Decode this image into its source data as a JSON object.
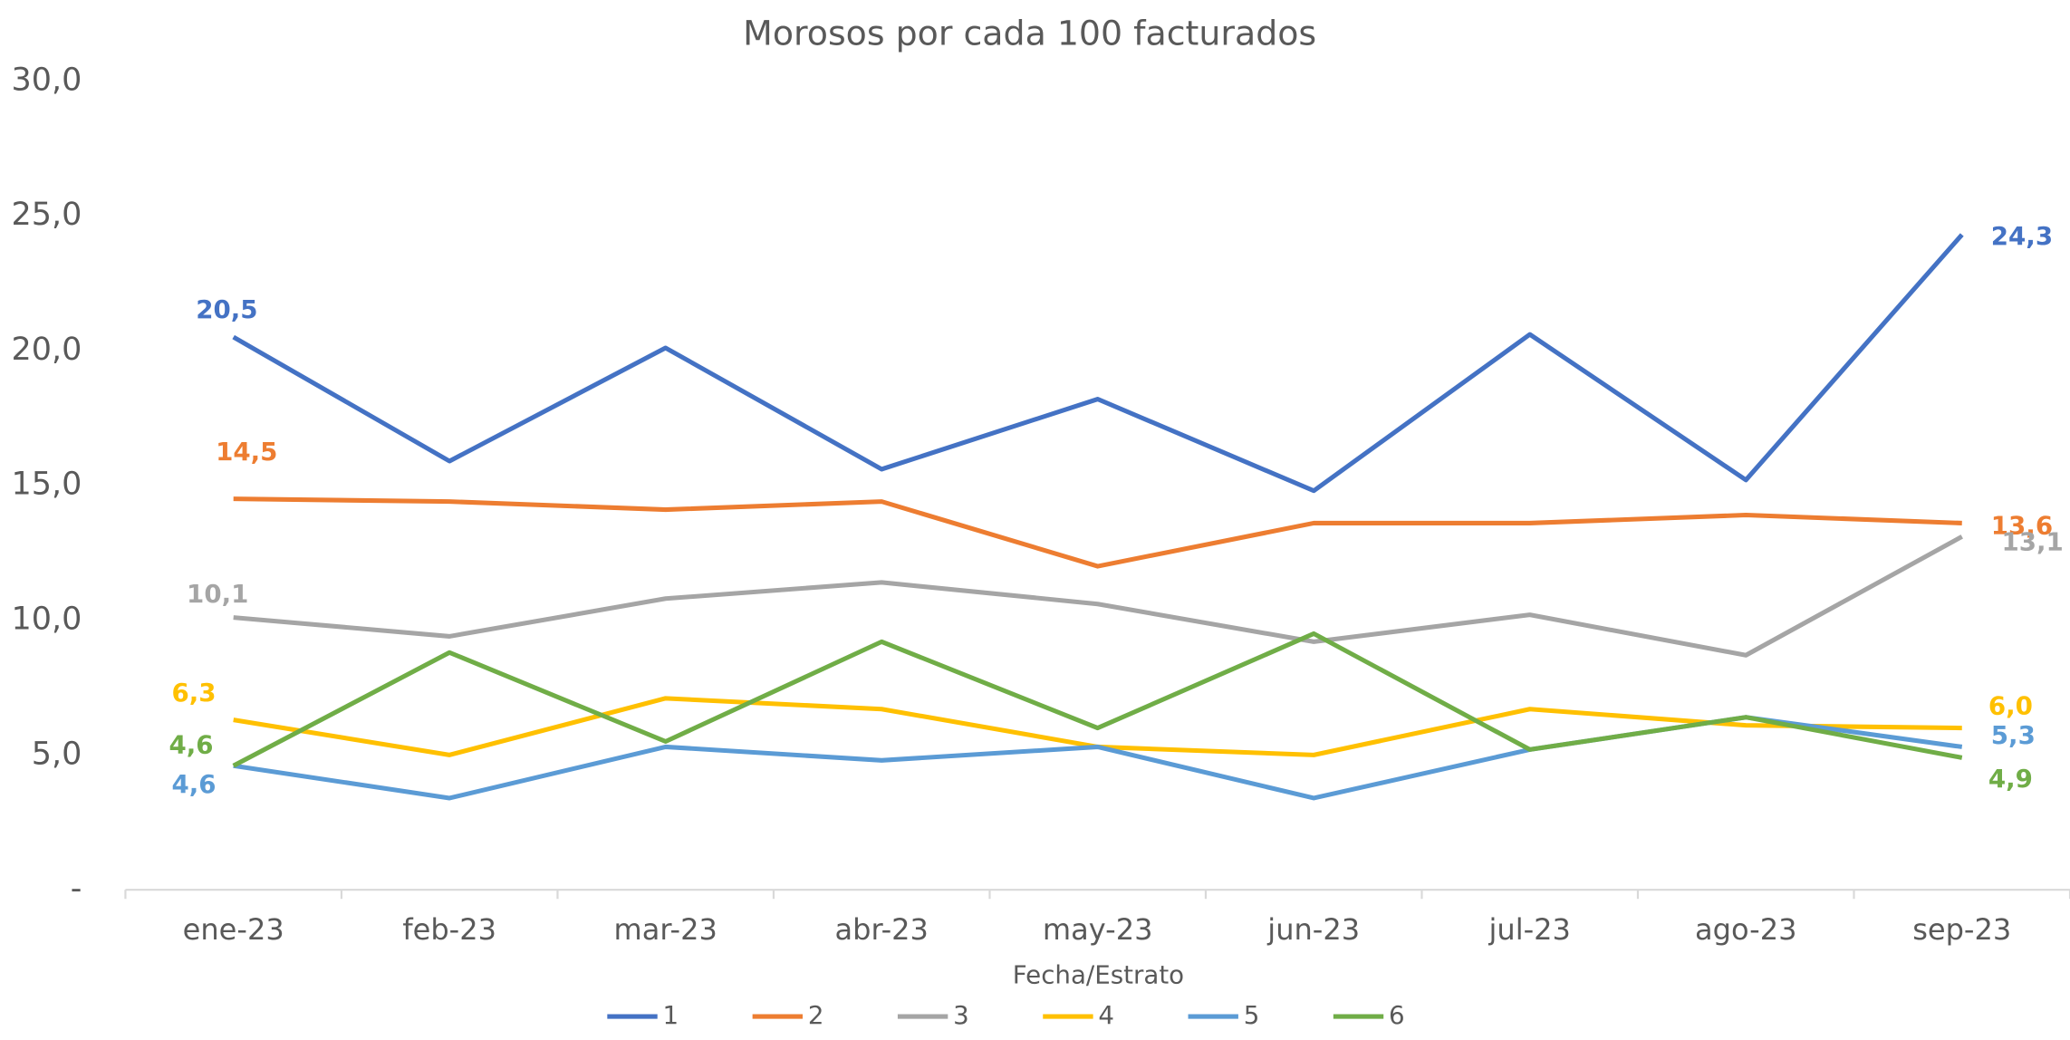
{
  "chart_data": {
    "type": "line",
    "title": "Morosos por cada 100 facturados",
    "x_label": "Fecha/Estrato",
    "categories": [
      "ene-23",
      "feb-23",
      "mar-23",
      "abr-23",
      "may-23",
      "jun-23",
      "jul-23",
      "ago-23",
      "sep-23"
    ],
    "ylim": [
      0,
      30
    ],
    "yticks": [
      {
        "value": 0,
        "label": "-"
      },
      {
        "value": 5,
        "label": "5,0"
      },
      {
        "value": 10,
        "label": "10,0"
      },
      {
        "value": 15,
        "label": "15,0"
      },
      {
        "value": 20,
        "label": "20,0"
      },
      {
        "value": 25,
        "label": "25,0"
      },
      {
        "value": 30,
        "label": "30,0"
      }
    ],
    "grid": false,
    "legend": "bottom",
    "series": [
      {
        "name": "1",
        "color": "#4472c4",
        "values": [
          20.5,
          15.9,
          20.1,
          15.6,
          18.2,
          14.8,
          20.6,
          15.2,
          24.3
        ],
        "value_labels": [
          "20,5",
          null,
          null,
          null,
          null,
          null,
          null,
          null,
          "24,3"
        ]
      },
      {
        "name": "2",
        "color": "#ed7d31",
        "values": [
          14.5,
          14.4,
          14.1,
          14.4,
          12.0,
          13.6,
          13.6,
          13.9,
          13.6
        ],
        "value_labels": [
          "14,5",
          null,
          null,
          null,
          null,
          null,
          null,
          null,
          "13,6"
        ]
      },
      {
        "name": "3",
        "color": "#a5a5a5",
        "values": [
          10.1,
          9.4,
          10.8,
          11.4,
          10.6,
          9.2,
          10.2,
          8.7,
          13.1
        ],
        "value_labels": [
          "10,1",
          null,
          null,
          null,
          null,
          null,
          null,
          null,
          "13,1"
        ]
      },
      {
        "name": "4",
        "color": "#ffc000",
        "values": [
          6.3,
          5.0,
          7.1,
          6.7,
          5.3,
          5.0,
          6.7,
          6.1,
          6.0
        ],
        "value_labels": [
          "6,3",
          null,
          null,
          null,
          null,
          null,
          null,
          null,
          "6,0"
        ]
      },
      {
        "name": "5",
        "color": "#5b9bd5",
        "values": [
          4.6,
          3.4,
          5.3,
          4.8,
          5.3,
          3.4,
          5.2,
          6.4,
          5.3
        ],
        "value_labels": [
          "4,6",
          null,
          null,
          null,
          null,
          null,
          null,
          null,
          "5,3"
        ]
      },
      {
        "name": "6",
        "color": "#70ad47",
        "values": [
          4.6,
          8.8,
          5.5,
          9.2,
          6.0,
          9.5,
          5.2,
          6.4,
          4.9
        ],
        "value_labels": [
          "4,6",
          null,
          null,
          null,
          null,
          null,
          null,
          null,
          "4,9"
        ]
      }
    ]
  }
}
